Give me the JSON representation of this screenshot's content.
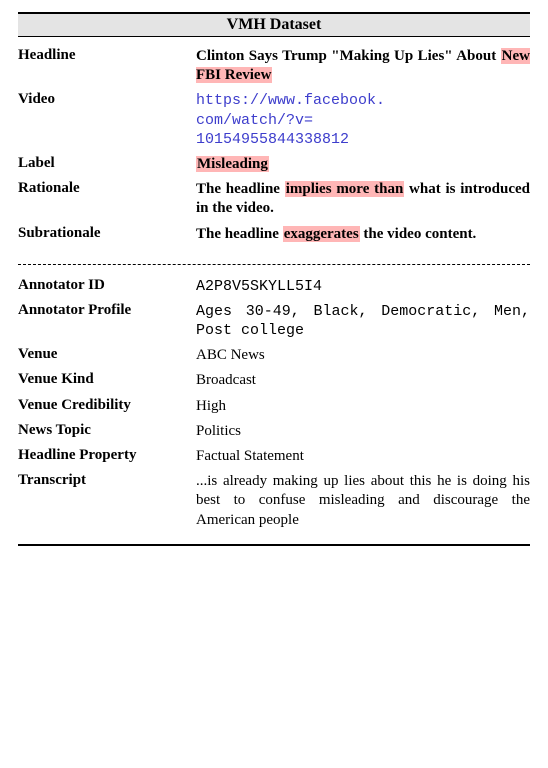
{
  "title": "VMH Dataset",
  "highlight_color": "#ffb6b6",
  "link_color": "#3d3dcc",
  "upper": {
    "headline": {
      "label": "Headline",
      "pre": "Clinton Says Trump \"Making Up Lies\" About ",
      "hl": "New FBI Review"
    },
    "video": {
      "label": "Video",
      "url_lines": [
        "https://www.facebook.",
        "com/watch/?v=",
        "10154955844338812"
      ]
    },
    "label_row": {
      "label": "Label",
      "hl": "Misleading"
    },
    "rationale": {
      "label": "Rationale",
      "pre": "The headline ",
      "hl": "implies more than",
      "post": " what is introduced in the video."
    },
    "subrationale": {
      "label": "Subrationale",
      "pre": "The headline ",
      "hl": "exaggerates",
      "post": " the video content."
    }
  },
  "lower": [
    {
      "label": "Annotator ID",
      "value": "A2P8V5SKYLL5I4",
      "mono": true
    },
    {
      "label": "Annotator Profile",
      "value": "Ages 30-49, Black, Democratic, Men, Post college",
      "mono": true
    },
    {
      "label": "Venue",
      "value": "ABC News",
      "mono": false
    },
    {
      "label": "Venue Kind",
      "value": "Broadcast",
      "mono": false
    },
    {
      "label": "Venue Credibility",
      "value": "High",
      "mono": false
    },
    {
      "label": "News Topic",
      "value": "Politics",
      "mono": false
    },
    {
      "label": "Headline Property",
      "value": "Factual Statement",
      "mono": false
    },
    {
      "label": "Transcript",
      "value": "...is already making up lies about this he is doing his best to confuse misleading and discourage the American people",
      "mono": false
    }
  ]
}
